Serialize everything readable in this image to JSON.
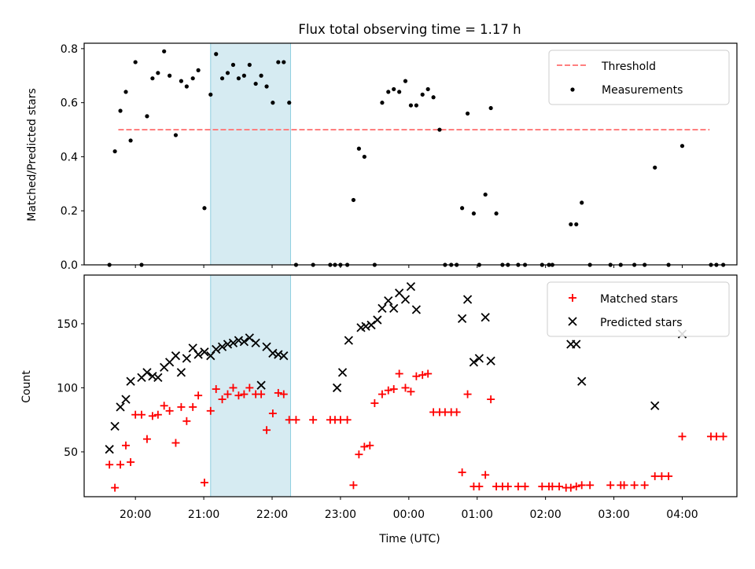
{
  "title": "Flux total observing time = 1.17 h",
  "shaded_color": "#add8e6",
  "chart_data": [
    {
      "type": "scatter",
      "panel": "top",
      "ylabel": "Matched/Predicted stars",
      "ylim": [
        0.0,
        0.82
      ],
      "yticks": [
        0.0,
        0.2,
        0.4,
        0.6,
        0.8
      ],
      "ytick_labels": [
        "0.0",
        "0.2",
        "0.4",
        "0.6",
        "0.8"
      ],
      "xlim": [
        19.25,
        28.8
      ],
      "shaded_region": [
        21.1,
        22.27
      ],
      "legend": {
        "placement": "top-right",
        "entries": [
          "Threshold",
          "Measurements"
        ]
      },
      "threshold": {
        "name": "Threshold",
        "value": 0.5,
        "x_range": [
          19.75,
          28.4
        ],
        "color": "#ff7f7f",
        "style": "dashed"
      },
      "series": [
        {
          "name": "Measurements",
          "color": "#000000",
          "marker": "dot",
          "points": [
            [
              19.62,
              0.0
            ],
            [
              19.7,
              0.42
            ],
            [
              19.78,
              0.57
            ],
            [
              19.86,
              0.64
            ],
            [
              19.93,
              0.46
            ],
            [
              20.0,
              0.75
            ],
            [
              20.09,
              0.0
            ],
            [
              20.17,
              0.55
            ],
            [
              20.25,
              0.69
            ],
            [
              20.33,
              0.71
            ],
            [
              20.42,
              0.79
            ],
            [
              20.5,
              0.7
            ],
            [
              20.59,
              0.48
            ],
            [
              20.67,
              0.68
            ],
            [
              20.75,
              0.66
            ],
            [
              20.84,
              0.69
            ],
            [
              20.92,
              0.72
            ],
            [
              21.01,
              0.21
            ],
            [
              21.1,
              0.63
            ],
            [
              21.18,
              0.78
            ],
            [
              21.27,
              0.69
            ],
            [
              21.35,
              0.71
            ],
            [
              21.43,
              0.74
            ],
            [
              21.51,
              0.69
            ],
            [
              21.59,
              0.7
            ],
            [
              21.67,
              0.74
            ],
            [
              21.76,
              0.67
            ],
            [
              21.84,
              0.7
            ],
            [
              21.92,
              0.66
            ],
            [
              22.01,
              0.6
            ],
            [
              22.09,
              0.75
            ],
            [
              22.17,
              0.75
            ],
            [
              22.25,
              0.6
            ],
            [
              22.35,
              0.0
            ],
            [
              22.6,
              0.0
            ],
            [
              22.85,
              0.0
            ],
            [
              22.92,
              0.0
            ],
            [
              23.0,
              0.0
            ],
            [
              23.1,
              0.0
            ],
            [
              23.19,
              0.24
            ],
            [
              23.27,
              0.43
            ],
            [
              23.35,
              0.4
            ],
            [
              23.5,
              0.0
            ],
            [
              23.61,
              0.6
            ],
            [
              23.7,
              0.64
            ],
            [
              23.78,
              0.65
            ],
            [
              23.86,
              0.64
            ],
            [
              23.95,
              0.68
            ],
            [
              24.03,
              0.59
            ],
            [
              24.11,
              0.59
            ],
            [
              24.2,
              0.63
            ],
            [
              24.28,
              0.65
            ],
            [
              24.36,
              0.62
            ],
            [
              24.45,
              0.5
            ],
            [
              24.53,
              0.0
            ],
            [
              24.62,
              0.0
            ],
            [
              24.7,
              0.0
            ],
            [
              24.78,
              0.21
            ],
            [
              24.86,
              0.56
            ],
            [
              24.95,
              0.19
            ],
            [
              25.03,
              0.0
            ],
            [
              25.12,
              0.26
            ],
            [
              25.2,
              0.58
            ],
            [
              25.28,
              0.19
            ],
            [
              25.37,
              0.0
            ],
            [
              25.45,
              0.0
            ],
            [
              25.6,
              0.0
            ],
            [
              25.7,
              0.0
            ],
            [
              25.95,
              0.0
            ],
            [
              26.05,
              0.0
            ],
            [
              26.1,
              0.0
            ],
            [
              26.37,
              0.15
            ],
            [
              26.45,
              0.15
            ],
            [
              26.53,
              0.23
            ],
            [
              26.65,
              0.0
            ],
            [
              26.95,
              0.0
            ],
            [
              27.1,
              0.0
            ],
            [
              27.3,
              0.0
            ],
            [
              27.45,
              0.0
            ],
            [
              27.6,
              0.36
            ],
            [
              27.8,
              0.0
            ],
            [
              28.0,
              0.44
            ],
            [
              28.42,
              0.0
            ],
            [
              28.5,
              0.0
            ],
            [
              28.6,
              0.0
            ]
          ]
        }
      ]
    },
    {
      "type": "scatter",
      "panel": "bottom",
      "ylabel": "Count",
      "xlabel": "Time (UTC)",
      "ylim": [
        15,
        188
      ],
      "yticks": [
        50,
        100,
        150
      ],
      "ytick_labels": [
        "50",
        "100",
        "150"
      ],
      "xlim": [
        19.25,
        28.8
      ],
      "xticks": [
        20,
        21,
        22,
        23,
        24,
        25,
        26,
        27,
        28
      ],
      "xtick_labels": [
        "20:00",
        "21:00",
        "22:00",
        "23:00",
        "00:00",
        "01:00",
        "02:00",
        "03:00",
        "04:00"
      ],
      "shaded_region": [
        21.1,
        22.27
      ],
      "legend": {
        "placement": "top-right",
        "entries": [
          "Matched stars",
          "Predicted stars"
        ]
      },
      "series": [
        {
          "name": "Matched stars",
          "color": "#ff0000",
          "marker": "plus",
          "points": [
            [
              19.62,
              40
            ],
            [
              19.7,
              22
            ],
            [
              19.78,
              40
            ],
            [
              19.86,
              55
            ],
            [
              19.93,
              42
            ],
            [
              20.0,
              79
            ],
            [
              20.09,
              79
            ],
            [
              20.17,
              60
            ],
            [
              20.25,
              78
            ],
            [
              20.33,
              79
            ],
            [
              20.42,
              86
            ],
            [
              20.5,
              82
            ],
            [
              20.59,
              57
            ],
            [
              20.67,
              85
            ],
            [
              20.75,
              74
            ],
            [
              20.84,
              85
            ],
            [
              20.92,
              94
            ],
            [
              21.01,
              26
            ],
            [
              21.1,
              82
            ],
            [
              21.18,
              99
            ],
            [
              21.27,
              91
            ],
            [
              21.35,
              95
            ],
            [
              21.43,
              100
            ],
            [
              21.51,
              94
            ],
            [
              21.59,
              95
            ],
            [
              21.67,
              100
            ],
            [
              21.76,
              95
            ],
            [
              21.84,
              95
            ],
            [
              21.92,
              67
            ],
            [
              22.01,
              80
            ],
            [
              22.09,
              96
            ],
            [
              22.17,
              95
            ],
            [
              22.25,
              75
            ],
            [
              22.35,
              75
            ],
            [
              22.6,
              75
            ],
            [
              22.85,
              75
            ],
            [
              22.92,
              75
            ],
            [
              23.0,
              75
            ],
            [
              23.1,
              75
            ],
            [
              23.19,
              24
            ],
            [
              23.27,
              48
            ],
            [
              23.35,
              54
            ],
            [
              23.43,
              55
            ],
            [
              23.5,
              88
            ],
            [
              23.61,
              95
            ],
            [
              23.7,
              98
            ],
            [
              23.78,
              99
            ],
            [
              23.86,
              111
            ],
            [
              23.95,
              100
            ],
            [
              24.03,
              97
            ],
            [
              24.11,
              109
            ],
            [
              24.2,
              110
            ],
            [
              24.28,
              111
            ],
            [
              24.36,
              81
            ],
            [
              24.45,
              81
            ],
            [
              24.53,
              81
            ],
            [
              24.62,
              81
            ],
            [
              24.7,
              81
            ],
            [
              24.78,
              34
            ],
            [
              24.86,
              95
            ],
            [
              24.95,
              23
            ],
            [
              25.03,
              23
            ],
            [
              25.12,
              32
            ],
            [
              25.2,
              91
            ],
            [
              25.28,
              23
            ],
            [
              25.37,
              23
            ],
            [
              25.45,
              23
            ],
            [
              25.6,
              23
            ],
            [
              25.7,
              23
            ],
            [
              25.95,
              23
            ],
            [
              26.05,
              23
            ],
            [
              26.1,
              23
            ],
            [
              26.2,
              23
            ],
            [
              26.3,
              22
            ],
            [
              26.37,
              22
            ],
            [
              26.45,
              23
            ],
            [
              26.53,
              24
            ],
            [
              26.65,
              24
            ],
            [
              26.95,
              24
            ],
            [
              27.1,
              24
            ],
            [
              27.15,
              24
            ],
            [
              27.3,
              24
            ],
            [
              27.45,
              24
            ],
            [
              27.6,
              31
            ],
            [
              27.7,
              31
            ],
            [
              27.8,
              31
            ],
            [
              28.0,
              62
            ],
            [
              28.42,
              62
            ],
            [
              28.5,
              62
            ],
            [
              28.6,
              62
            ]
          ]
        },
        {
          "name": "Predicted stars",
          "color": "#000000",
          "marker": "x",
          "points": [
            [
              19.62,
              52
            ],
            [
              19.7,
              70
            ],
            [
              19.78,
              85
            ],
            [
              19.86,
              91
            ],
            [
              19.93,
              105
            ],
            [
              20.09,
              108
            ],
            [
              20.17,
              112
            ],
            [
              20.25,
              109
            ],
            [
              20.33,
              108
            ],
            [
              20.42,
              116
            ],
            [
              20.5,
              120
            ],
            [
              20.59,
              125
            ],
            [
              20.67,
              112
            ],
            [
              20.75,
              123
            ],
            [
              20.84,
              131
            ],
            [
              20.92,
              126
            ],
            [
              21.01,
              128
            ],
            [
              21.1,
              125
            ],
            [
              21.18,
              130
            ],
            [
              21.27,
              132
            ],
            [
              21.35,
              134
            ],
            [
              21.43,
              135
            ],
            [
              21.51,
              137
            ],
            [
              21.59,
              136
            ],
            [
              21.67,
              139
            ],
            [
              21.76,
              135
            ],
            [
              21.84,
              102
            ],
            [
              21.92,
              132
            ],
            [
              22.01,
              127
            ],
            [
              22.09,
              126
            ],
            [
              22.17,
              125
            ],
            [
              22.95,
              100
            ],
            [
              23.03,
              112
            ],
            [
              23.12,
              137
            ],
            [
              23.3,
              147
            ],
            [
              23.37,
              148
            ],
            [
              23.45,
              149
            ],
            [
              23.54,
              153
            ],
            [
              23.61,
              162
            ],
            [
              23.7,
              168
            ],
            [
              23.78,
              162
            ],
            [
              23.86,
              174
            ],
            [
              23.95,
              169
            ],
            [
              24.03,
              179
            ],
            [
              24.11,
              161
            ],
            [
              24.78,
              154
            ],
            [
              24.86,
              169
            ],
            [
              24.95,
              120
            ],
            [
              25.03,
              123
            ],
            [
              25.12,
              155
            ],
            [
              25.2,
              121
            ],
            [
              26.37,
              134
            ],
            [
              26.45,
              134
            ],
            [
              26.53,
              105
            ],
            [
              27.6,
              86
            ],
            [
              28.0,
              142
            ]
          ]
        }
      ]
    }
  ]
}
